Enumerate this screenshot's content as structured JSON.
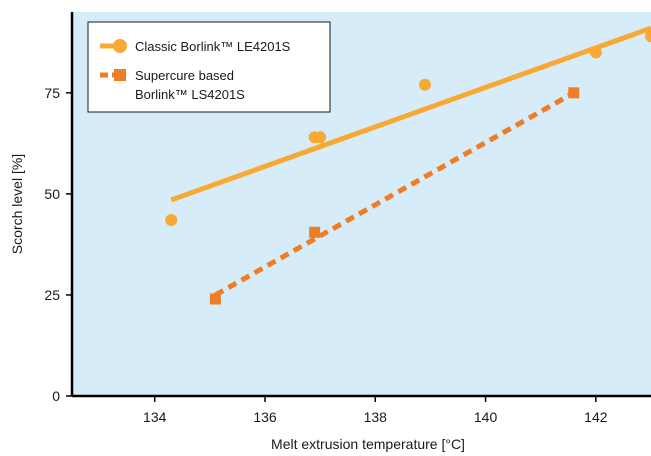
{
  "chart_data": {
    "type": "scatter",
    "xlabel": "Melt extrusion temperature [°C]",
    "ylabel": "Scorch level  [%]",
    "xlim": [
      132.5,
      143
    ],
    "ylim": [
      0,
      95
    ],
    "xticks": [
      134,
      136,
      138,
      140,
      142
    ],
    "yticks": [
      0,
      25,
      50,
      75
    ],
    "grid": false,
    "legend_position": "top-left",
    "plot_background": "#d6ecf8",
    "series": [
      {
        "name": "Classic Borlink™ LE4201S",
        "legend_lines": [
          "Classic Borlink™ LE4201S"
        ],
        "color": "#f7a934",
        "marker": "circle",
        "points": [
          {
            "x": 134.3,
            "y": 43.5
          },
          {
            "x": 136.9,
            "y": 64
          },
          {
            "x": 137.0,
            "y": 64
          },
          {
            "x": 138.9,
            "y": 77
          },
          {
            "x": 142.0,
            "y": 85
          },
          {
            "x": 143.0,
            "y": 89
          }
        ],
        "trendline": {
          "style": "solid",
          "from": {
            "x": 134.3,
            "y": 48.5
          },
          "to": {
            "x": 143.0,
            "y": 91
          }
        }
      },
      {
        "name": "Supercure based Borlink™ LS4201S",
        "legend_lines": [
          "Supercure based",
          "Borlink™ LS4201S"
        ],
        "color": "#ee7d23",
        "marker": "square",
        "points": [
          {
            "x": 135.1,
            "y": 24
          },
          {
            "x": 136.9,
            "y": 40.5
          },
          {
            "x": 141.6,
            "y": 75
          }
        ],
        "trendline": {
          "style": "dashed",
          "from": {
            "x": 135.1,
            "y": 25
          },
          "to": {
            "x": 141.6,
            "y": 75
          }
        }
      }
    ]
  }
}
